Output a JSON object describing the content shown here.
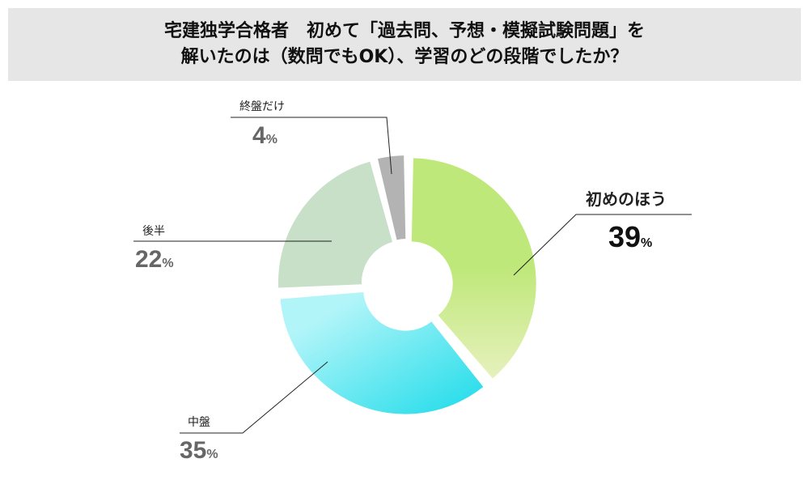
{
  "chart_data": {
    "type": "pie",
    "variant": "donut",
    "title": [
      "宅建独学合格者　初めて「過去問、予想・模擬試験問題」を",
      "解いたのは（数問でもOK）、学習のどの段階でしたか？"
    ],
    "categories": [
      "初めのほう",
      "中盤",
      "後半",
      "終盤だけ"
    ],
    "values": [
      39,
      35,
      22,
      4
    ],
    "unit": "%",
    "colors": [
      [
        "#bfe87a",
        "#e6f1bd"
      ],
      [
        "#b2f5f9",
        "#1cdbe9"
      ],
      [
        "#c8dfc8",
        "#c8dfc8"
      ],
      [
        "#b3b3b3",
        "#b3b3b3"
      ]
    ]
  }
}
